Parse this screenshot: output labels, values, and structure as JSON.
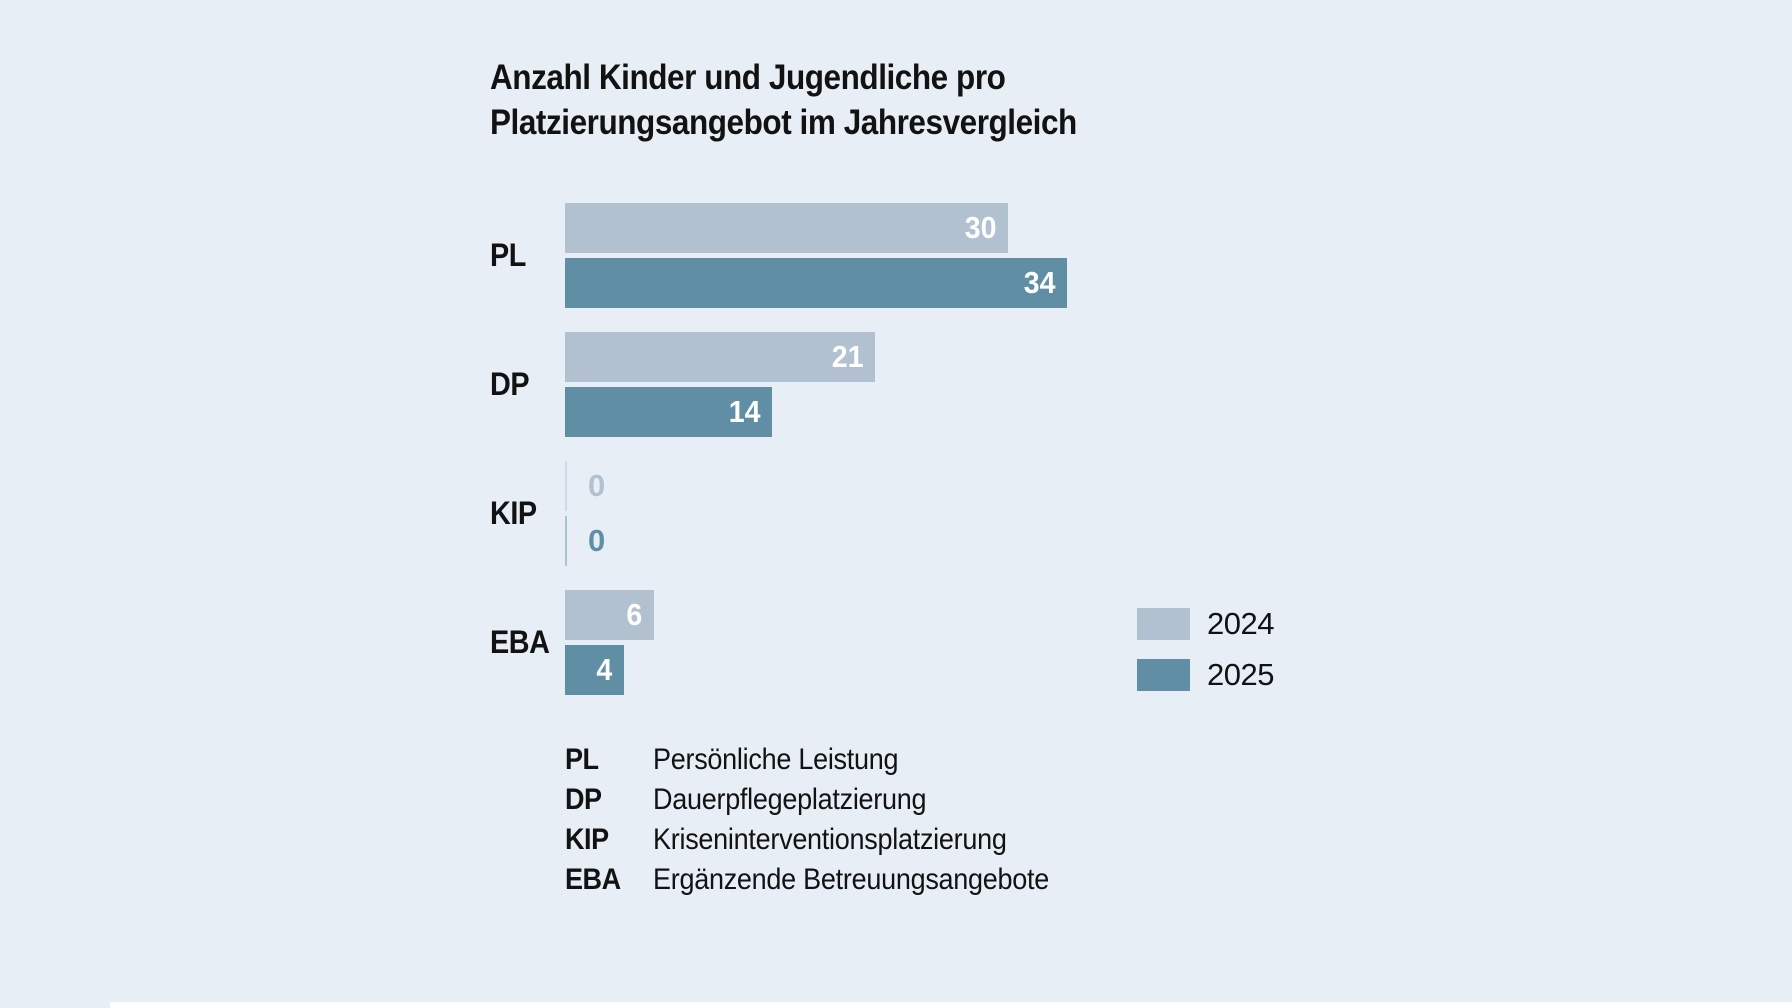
{
  "title": {
    "line1": "Anzahl Kinder und Jugendliche pro",
    "line2": "Platzierungsangebot im Jahresvergleich"
  },
  "chart_data": {
    "type": "bar",
    "orientation": "horizontal",
    "title": "Anzahl Kinder und Jugendliche pro Platzierungsangebot im Jahresvergleich",
    "categories": [
      "PL",
      "DP",
      "KIP",
      "EBA"
    ],
    "series": [
      {
        "name": "2024",
        "color": "#b1c1d0",
        "values": [
          30,
          21,
          0,
          6
        ]
      },
      {
        "name": "2025",
        "color": "#608ea4",
        "values": [
          34,
          14,
          0,
          4
        ]
      }
    ],
    "xlim": [
      0,
      34
    ],
    "grid": false,
    "value_labels": "inside-end",
    "legend_position": "right"
  },
  "legend": {
    "items": [
      {
        "label": "2024",
        "color": "#b1c1d0"
      },
      {
        "label": "2025",
        "color": "#608ea4"
      }
    ]
  },
  "footnotes": [
    {
      "abbr": "PL",
      "label": "Persönliche Leistung"
    },
    {
      "abbr": "DP",
      "label": "Dauerpflegeplatzierung"
    },
    {
      "abbr": "KIP",
      "label": "Kriseninterventionsplatzierung"
    },
    {
      "abbr": "EBA",
      "label": "Ergänzende Betreuungsangebote"
    }
  ],
  "colors": {
    "background": "#e8eef6",
    "text": "#121212",
    "value_label": "#ffffff",
    "bottom_strip": "#ffffff"
  }
}
